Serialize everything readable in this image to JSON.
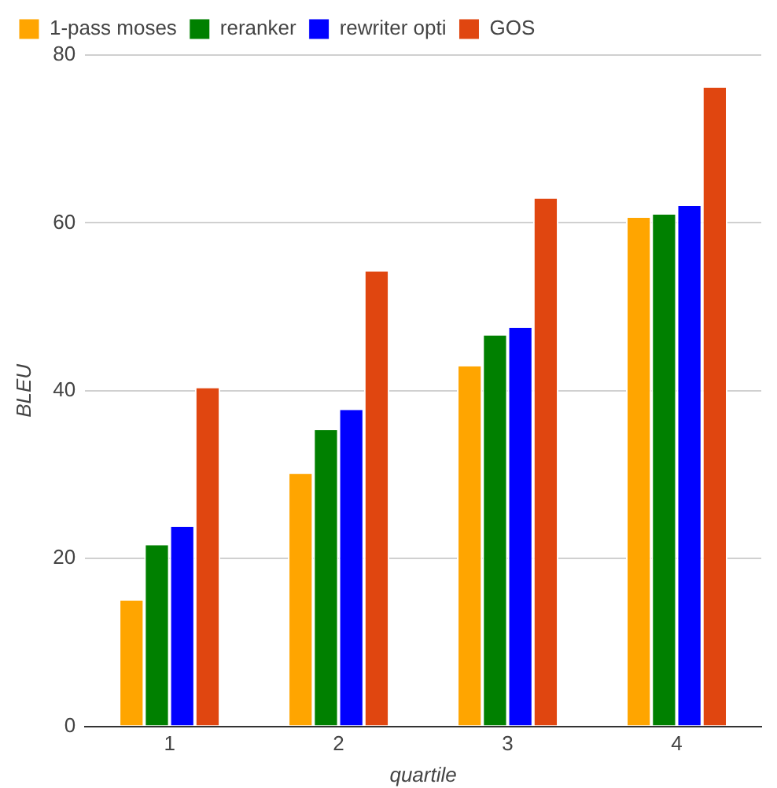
{
  "chart_data": {
    "type": "bar",
    "xlabel": "quartile",
    "ylabel": "BLEU",
    "categories": [
      "1",
      "2",
      "3",
      "4"
    ],
    "series": [
      {
        "name": "1-pass moses",
        "color": "#ffa500",
        "values": [
          15.0,
          30.1,
          42.9,
          60.6
        ]
      },
      {
        "name": "reranker",
        "color": "#008000",
        "values": [
          21.6,
          35.3,
          46.6,
          61.0
        ]
      },
      {
        "name": "rewriter opti",
        "color": "#0000ff",
        "values": [
          23.8,
          37.7,
          47.5,
          62.0
        ]
      },
      {
        "name": "GOS",
        "color": "#e04610",
        "values": [
          40.3,
          54.2,
          62.9,
          76.1
        ]
      }
    ],
    "ylim": [
      0,
      80
    ],
    "yticks": [
      0,
      20,
      40,
      60,
      80
    ],
    "grid": "y",
    "legend": "top"
  }
}
